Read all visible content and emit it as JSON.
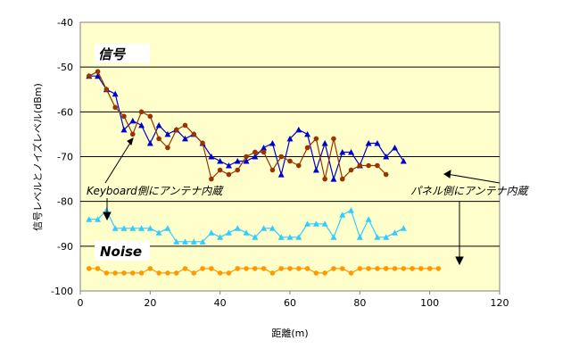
{
  "chart_data": {
    "type": "line",
    "xlabel": "距離(m)",
    "ylabel": "信号レベルとノイズレベル(dBm)",
    "xlim": [
      0,
      120
    ],
    "ylim": [
      -100,
      -40
    ],
    "xticks": [
      0,
      20,
      40,
      60,
      80,
      100,
      120
    ],
    "yticks": [
      -40,
      -50,
      -60,
      -70,
      -80,
      -90,
      -100
    ],
    "grid": "horizontal",
    "plot_background": "#ffffcc",
    "series": [
      {
        "color": "#0000cc",
        "marker": "triangle",
        "x": [
          2.5,
          5,
          7.5,
          10,
          12.5,
          15,
          17.5,
          20,
          22.5,
          25,
          27.5,
          30,
          32.5,
          35,
          37.5,
          40,
          42.5,
          45,
          47.5,
          50,
          52.5,
          55,
          57.5,
          60,
          62.5,
          65,
          67.5,
          70,
          72.5,
          75,
          77.5,
          80,
          82.5,
          85,
          87.5,
          90,
          92.5,
          95,
          97.5,
          100,
          102.5,
          105
        ],
        "values": [
          -52,
          -52,
          -55,
          -56,
          -64,
          -62,
          -63,
          -67,
          -63,
          -65,
          -64,
          -66,
          -65,
          -67,
          -70,
          -71,
          -72,
          -71,
          -71,
          -70,
          -68,
          -67,
          -74,
          -66,
          -64,
          -65,
          -73,
          -67,
          -75,
          -69,
          -69,
          -72,
          -67,
          -67,
          -70,
          -68,
          -71,
          null,
          null,
          null,
          null,
          null
        ]
      },
      {
        "color": "#993300",
        "marker": "circle",
        "x": [
          2.5,
          5,
          7.5,
          10,
          12.5,
          15,
          17.5,
          20,
          22.5,
          25,
          27.5,
          30,
          32.5,
          35,
          37.5,
          40,
          42.5,
          45,
          47.5,
          50,
          52.5,
          55,
          57.5,
          60,
          62.5,
          65,
          67.5,
          70,
          72.5,
          75,
          77.5,
          80,
          82.5,
          85,
          87.5,
          90,
          92.5,
          95,
          97.5,
          100,
          102.5,
          105
        ],
        "values": [
          -52,
          -51,
          -55,
          -59,
          -61,
          -65,
          -60,
          -61,
          -66,
          -68,
          -64,
          -63,
          -65,
          -67,
          -75,
          -73,
          -74,
          -73,
          -70,
          -69,
          -69,
          -73,
          -70,
          -71,
          -72,
          -68,
          -66,
          -75,
          -66,
          -75,
          -73,
          -72,
          -72,
          -72,
          -74,
          null,
          null,
          null,
          null,
          null,
          null,
          null
        ]
      },
      {
        "color": "#33ccff",
        "marker": "triangle",
        "x": [
          2.5,
          5,
          7.5,
          10,
          12.5,
          15,
          17.5,
          20,
          22.5,
          25,
          27.5,
          30,
          32.5,
          35,
          37.5,
          40,
          42.5,
          45,
          47.5,
          50,
          52.5,
          55,
          57.5,
          60,
          62.5,
          65,
          67.5,
          70,
          72.5,
          75,
          77.5,
          80,
          82.5,
          85,
          87.5,
          90,
          92.5,
          95,
          97.5,
          100,
          102.5,
          105
        ],
        "values": [
          -84,
          -84,
          -82,
          -86,
          -86,
          -86,
          -86,
          -86,
          -87,
          -86,
          -89,
          -89,
          -89,
          -89,
          -87,
          -88,
          -87,
          -86,
          -87,
          -88,
          -86,
          -86,
          -88,
          -88,
          -88,
          -85,
          -85,
          -85,
          -88,
          -83,
          -82,
          -88,
          -84,
          -88,
          -88,
          -87,
          -86,
          null,
          null,
          null,
          null,
          null
        ]
      },
      {
        "color": "#ff9900",
        "marker": "circle",
        "x": [
          2.5,
          5,
          7.5,
          10,
          12.5,
          15,
          17.5,
          20,
          22.5,
          25,
          27.5,
          30,
          32.5,
          35,
          37.5,
          40,
          42.5,
          45,
          47.5,
          50,
          52.5,
          55,
          57.5,
          60,
          62.5,
          65,
          67.5,
          70,
          72.5,
          75,
          77.5,
          80,
          82.5,
          85,
          87.5,
          90,
          92.5,
          95,
          97.5,
          100,
          102.5,
          105
        ],
        "values": [
          -95,
          -95,
          -96,
          -96,
          -96,
          -96,
          -96,
          -95,
          -96,
          -96,
          -96,
          -95,
          -96,
          -95,
          -95,
          -96,
          -96,
          -95,
          -95,
          -95,
          -95,
          -96,
          -95,
          -95,
          -95,
          -95,
          -96,
          -96,
          -95,
          -95,
          -96,
          -95,
          -95,
          -95,
          -95,
          -95,
          -95,
          -95,
          -95,
          -95,
          -95,
          null
        ]
      }
    ],
    "labels": {
      "signal": "信号",
      "noise": "Noise",
      "keyboard": "Keyboard側にアンテナ内蔵",
      "panel": "パネル側にアンテナ内蔵"
    }
  }
}
